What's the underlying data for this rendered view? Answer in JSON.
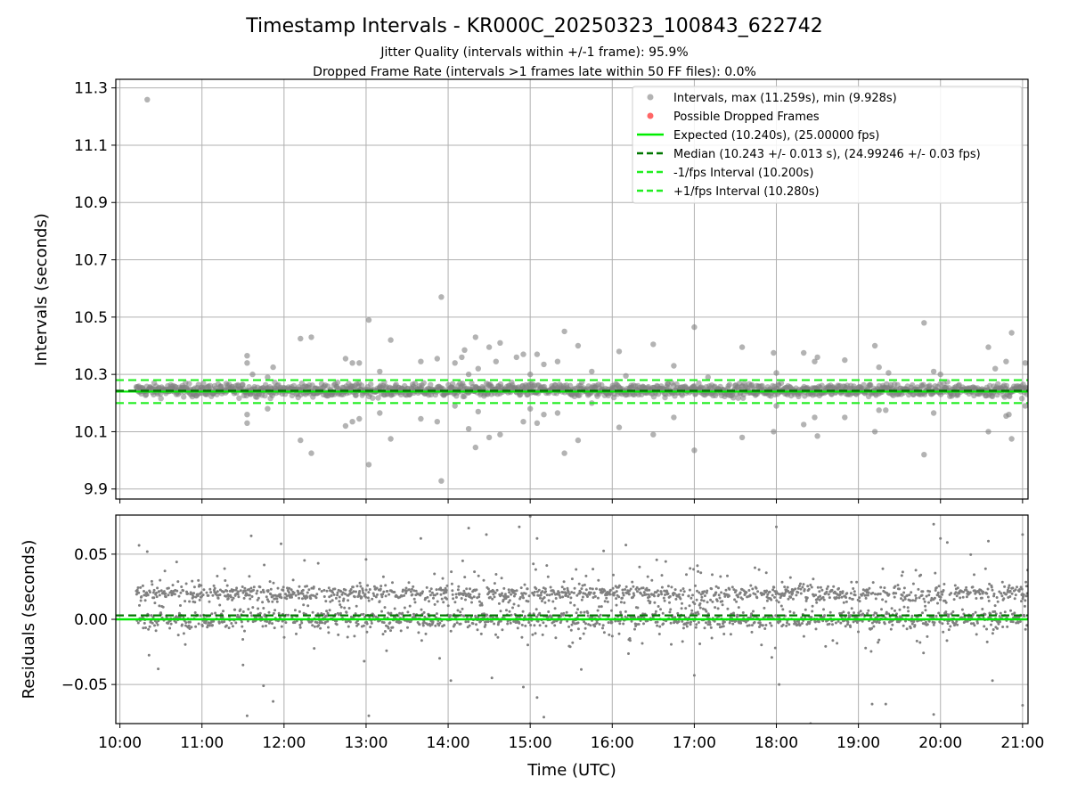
{
  "figure": {
    "title": "Timestamp Intervals - KR000C_20250323_100843_622742",
    "subtitle_line1": "Jitter Quality (intervals within +/-1 frame): 95.9%",
    "subtitle_line2": "Dropped Frame Rate (intervals >1 frames late within 50 FF files): 0.0%"
  },
  "colors": {
    "points": "#808080",
    "dropped": "#ff6666",
    "expected": "#00ee00",
    "median": "#007700",
    "bounds": "#22ee22"
  },
  "chart_data": [
    {
      "type": "scatter",
      "ylabel": "Intervals (seconds)",
      "xlim": [
        "09:57",
        "21:04"
      ],
      "ylim": [
        9.865,
        11.33
      ],
      "y_ticks": [
        "9.9",
        "10.1",
        "10.3",
        "10.5",
        "10.7",
        "10.9",
        "11.1",
        "11.3"
      ],
      "grid": true,
      "legend_position": "upper right",
      "legend": [
        {
          "label": "Intervals, max (11.259s), min (9.928s)",
          "style": "marker-gray"
        },
        {
          "label": "Possible Dropped Frames",
          "style": "marker-red"
        },
        {
          "label": "Expected (10.240s), (25.00000 fps)",
          "style": "line-solid-green"
        },
        {
          "label": "Median (10.243 +/- 0.013 s), (24.99246 +/- 0.03 fps)",
          "style": "line-dashed-darkgreen"
        },
        {
          "label": "-1/fps Interval (10.200s)",
          "style": "line-dashed-green"
        },
        {
          "label": "+1/fps Interval (10.280s)",
          "style": "line-dashed-green"
        }
      ],
      "reference_lines": {
        "expected": 10.24,
        "median": 10.243,
        "minus_1fps": 10.2,
        "plus_1fps": 10.28
      },
      "series": [
        {
          "name": "Intervals, max (11.259s), min (9.928s)",
          "points": [
            [
              "10:20",
              11.259
            ],
            [
              "11:33",
              10.365
            ],
            [
              "11:33",
              10.34
            ],
            [
              "11:37",
              10.3
            ],
            [
              "11:33",
              10.16
            ],
            [
              "11:33",
              10.13
            ],
            [
              "11:52",
              10.325
            ],
            [
              "11:48",
              10.29
            ],
            [
              "11:48",
              10.18
            ],
            [
              "12:12",
              10.425
            ],
            [
              "12:20",
              10.43
            ],
            [
              "12:12",
              10.07
            ],
            [
              "12:20",
              10.025
            ],
            [
              "12:45",
              10.355
            ],
            [
              "12:50",
              10.34
            ],
            [
              "12:55",
              10.34
            ],
            [
              "12:45",
              10.12
            ],
            [
              "12:50",
              10.135
            ],
            [
              "12:55",
              10.145
            ],
            [
              "13:02",
              10.49
            ],
            [
              "13:02",
              9.985
            ],
            [
              "13:10",
              10.31
            ],
            [
              "13:10",
              10.165
            ],
            [
              "13:18",
              10.42
            ],
            [
              "13:18",
              10.075
            ],
            [
              "13:40",
              10.345
            ],
            [
              "13:40",
              10.145
            ],
            [
              "13:52",
              10.355
            ],
            [
              "13:52",
              10.135
            ],
            [
              "13:55",
              10.57
            ],
            [
              "13:55",
              9.928
            ],
            [
              "14:05",
              10.34
            ],
            [
              "14:05",
              10.19
            ],
            [
              "14:10",
              10.36
            ],
            [
              "14:12",
              10.385
            ],
            [
              "14:15",
              10.3
            ],
            [
              "14:15",
              10.11
            ],
            [
              "14:20",
              10.43
            ],
            [
              "14:22",
              10.32
            ],
            [
              "14:20",
              10.045
            ],
            [
              "14:22",
              10.17
            ],
            [
              "14:30",
              10.395
            ],
            [
              "14:30",
              10.08
            ],
            [
              "14:35",
              10.345
            ],
            [
              "14:38",
              10.41
            ],
            [
              "14:38",
              10.09
            ],
            [
              "14:50",
              10.36
            ],
            [
              "14:55",
              10.37
            ],
            [
              "14:55",
              10.135
            ],
            [
              "15:00",
              10.3
            ],
            [
              "15:00",
              10.18
            ],
            [
              "15:05",
              10.37
            ],
            [
              "15:05",
              10.13
            ],
            [
              "15:10",
              10.335
            ],
            [
              "15:10",
              10.16
            ],
            [
              "15:20",
              10.345
            ],
            [
              "15:20",
              10.165
            ],
            [
              "15:25",
              10.45
            ],
            [
              "15:25",
              10.025
            ],
            [
              "15:35",
              10.4
            ],
            [
              "15:35",
              10.07
            ],
            [
              "15:45",
              10.31
            ],
            [
              "15:45",
              10.2
            ],
            [
              "16:05",
              10.38
            ],
            [
              "16:05",
              10.115
            ],
            [
              "16:10",
              10.295
            ],
            [
              "16:30",
              10.405
            ],
            [
              "16:30",
              10.09
            ],
            [
              "16:45",
              10.33
            ],
            [
              "16:45",
              10.15
            ],
            [
              "17:00",
              10.465
            ],
            [
              "17:00",
              10.035
            ],
            [
              "17:10",
              10.29
            ],
            [
              "17:35",
              10.395
            ],
            [
              "17:35",
              10.08
            ],
            [
              "17:58",
              10.375
            ],
            [
              "17:58",
              10.1
            ],
            [
              "18:00",
              10.305
            ],
            [
              "18:00",
              10.19
            ],
            [
              "18:20",
              10.375
            ],
            [
              "18:20",
              10.125
            ],
            [
              "18:28",
              10.345
            ],
            [
              "18:30",
              10.36
            ],
            [
              "18:28",
              10.15
            ],
            [
              "18:30",
              10.085
            ],
            [
              "18:50",
              10.35
            ],
            [
              "18:50",
              10.15
            ],
            [
              "19:12",
              10.4
            ],
            [
              "19:12",
              10.1
            ],
            [
              "19:15",
              10.325
            ],
            [
              "19:15",
              10.175
            ],
            [
              "19:20",
              10.175
            ],
            [
              "19:22",
              10.305
            ],
            [
              "19:48",
              10.48
            ],
            [
              "19:48",
              10.02
            ],
            [
              "19:55",
              10.31
            ],
            [
              "19:55",
              10.165
            ],
            [
              "20:00",
              10.3
            ],
            [
              "20:35",
              10.395
            ],
            [
              "20:35",
              10.1
            ],
            [
              "20:40",
              10.32
            ],
            [
              "20:48",
              10.345
            ],
            [
              "20:48",
              10.155
            ],
            [
              "20:50",
              10.16
            ],
            [
              "20:52",
              10.445
            ],
            [
              "20:52",
              10.075
            ],
            [
              "21:02",
              10.34
            ],
            [
              "21:02",
              10.19
            ]
          ]
        }
      ]
    },
    {
      "type": "scatter",
      "xlabel": "Time (UTC)",
      "ylabel": "Residuals (seconds)",
      "xlim": [
        "09:57",
        "21:04"
      ],
      "ylim": [
        -0.08,
        0.08
      ],
      "x_ticks": [
        "10:00",
        "11:00",
        "12:00",
        "13:00",
        "14:00",
        "15:00",
        "16:00",
        "17:00",
        "18:00",
        "19:00",
        "20:00",
        "21:00"
      ],
      "y_ticks": [
        "−0.05",
        "0.00",
        "0.05"
      ],
      "grid": true,
      "reference_lines": {
        "zero": 0.0,
        "median_offset": 0.003
      },
      "series": [
        {
          "name": "Residuals",
          "band_centers": [
            0.0,
            0.02
          ],
          "outliers": [
            [
              "10:20",
              0.052
            ],
            [
              "10:28",
              -0.038
            ],
            [
              "11:30",
              -0.035
            ],
            [
              "11:33",
              -0.074
            ],
            [
              "11:36",
              0.064
            ],
            [
              "11:45",
              -0.051
            ],
            [
              "11:52",
              -0.063
            ],
            [
              "12:25",
              0.043
            ],
            [
              "13:00",
              0.046
            ],
            [
              "13:02",
              -0.074
            ],
            [
              "13:40",
              0.062
            ],
            [
              "14:02",
              -0.047
            ],
            [
              "14:15",
              0.07
            ],
            [
              "14:28",
              0.065
            ],
            [
              "14:32",
              -0.045
            ],
            [
              "14:52",
              0.071
            ],
            [
              "14:55",
              -0.052
            ],
            [
              "15:00",
              0.079
            ],
            [
              "15:00",
              -0.08
            ],
            [
              "15:05",
              0.062
            ],
            [
              "15:05",
              -0.06
            ],
            [
              "15:10",
              -0.075
            ],
            [
              "16:10",
              0.057
            ],
            [
              "17:00",
              -0.043
            ],
            [
              "18:00",
              0.071
            ],
            [
              "18:02",
              -0.05
            ],
            [
              "18:25",
              -0.08
            ],
            [
              "19:10",
              -0.065
            ],
            [
              "19:20",
              -0.065
            ],
            [
              "19:55",
              0.073
            ],
            [
              "19:55",
              -0.073
            ],
            [
              "20:00",
              0.062
            ],
            [
              "20:05",
              0.059
            ],
            [
              "20:35",
              0.06
            ],
            [
              "20:38",
              -0.047
            ],
            [
              "21:00",
              0.065
            ],
            [
              "21:00",
              -0.066
            ]
          ]
        }
      ]
    }
  ]
}
